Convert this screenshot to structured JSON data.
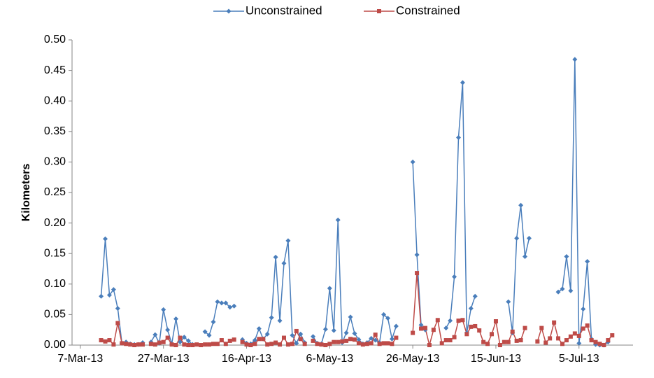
{
  "chart_data": {
    "type": "line",
    "y_label": "Kilometers",
    "x": [
      "2013-03-12",
      "2013-03-13",
      "2013-03-14",
      "2013-03-15",
      "2013-03-16",
      "2013-03-17",
      "2013-03-18",
      "2013-03-19",
      "2013-03-20",
      "2013-03-21",
      "2013-03-22",
      "2013-03-23",
      "2013-03-24",
      "2013-03-25",
      "2013-03-26",
      "2013-03-27",
      "2013-03-28",
      "2013-03-29",
      "2013-03-30",
      "2013-03-31",
      "2013-04-01",
      "2013-04-02",
      "2013-04-03",
      "2013-04-04",
      "2013-04-05",
      "2013-04-06",
      "2013-04-07",
      "2013-04-08",
      "2013-04-09",
      "2013-04-10",
      "2013-04-11",
      "2013-04-12",
      "2013-04-13",
      "2013-04-14",
      "2013-04-15",
      "2013-04-16",
      "2013-04-17",
      "2013-04-18",
      "2013-04-19",
      "2013-04-20",
      "2013-04-21",
      "2013-04-22",
      "2013-04-23",
      "2013-04-24",
      "2013-04-25",
      "2013-04-26",
      "2013-04-27",
      "2013-04-28",
      "2013-04-29",
      "2013-04-30",
      "2013-05-01",
      "2013-05-02",
      "2013-05-03",
      "2013-05-04",
      "2013-05-05",
      "2013-05-06",
      "2013-05-07",
      "2013-05-08",
      "2013-05-09",
      "2013-05-10",
      "2013-05-11",
      "2013-05-12",
      "2013-05-13",
      "2013-05-14",
      "2013-05-15",
      "2013-05-16",
      "2013-05-17",
      "2013-05-18",
      "2013-05-19",
      "2013-05-20",
      "2013-05-21",
      "2013-05-22",
      "2013-05-23",
      "2013-05-24",
      "2013-05-25",
      "2013-05-26",
      "2013-05-27",
      "2013-05-28",
      "2013-05-29",
      "2013-05-30",
      "2013-05-31",
      "2013-06-01",
      "2013-06-02",
      "2013-06-03",
      "2013-06-04",
      "2013-06-05",
      "2013-06-06",
      "2013-06-07",
      "2013-06-08",
      "2013-06-09",
      "2013-06-10",
      "2013-06-11",
      "2013-06-12",
      "2013-06-13",
      "2013-06-14",
      "2013-06-15",
      "2013-06-16",
      "2013-06-17",
      "2013-06-18",
      "2013-06-19",
      "2013-06-20",
      "2013-06-21",
      "2013-06-22",
      "2013-06-23",
      "2013-06-24",
      "2013-06-25",
      "2013-06-26",
      "2013-06-27",
      "2013-06-28",
      "2013-06-29",
      "2013-06-30",
      "2013-07-01",
      "2013-07-02",
      "2013-07-03",
      "2013-07-04",
      "2013-07-05",
      "2013-07-06",
      "2013-07-07",
      "2013-07-08",
      "2013-07-09",
      "2013-07-10",
      "2013-07-11",
      "2013-07-12",
      "2013-07-13"
    ],
    "series": [
      {
        "name": "Unconstrained",
        "color": "#4a7ebb",
        "marker": "diamond",
        "values": [
          0.08,
          0.174,
          0.082,
          0.091,
          0.06,
          0.003,
          0.005,
          0.002,
          0.001,
          0.001,
          0.004,
          null,
          0.005,
          0.017,
          0.003,
          0.058,
          0.025,
          0.002,
          0.043,
          0.005,
          0.013,
          0.007,
          0.001,
          null,
          null,
          0.022,
          0.016,
          0.038,
          0.071,
          0.069,
          0.069,
          0.062,
          0.064,
          null,
          0.009,
          0.003,
          0.002,
          0.008,
          0.027,
          0.01,
          0.018,
          0.045,
          0.144,
          0.04,
          0.134,
          0.171,
          0.016,
          0.003,
          0.018,
          0.004,
          null,
          0.014,
          0.003,
          0.002,
          0.026,
          0.093,
          0.024,
          0.205,
          0.004,
          0.02,
          0.046,
          0.019,
          0.009,
          0.002,
          0.004,
          0.011,
          0.008,
          0.004,
          0.05,
          0.044,
          0.01,
          0.031,
          null,
          null,
          null,
          0.3,
          0.148,
          0.033,
          0.025,
          null,
          null,
          null,
          null,
          0.028,
          0.04,
          0.112,
          0.34,
          0.43,
          0.02,
          0.06,
          0.08,
          null,
          null,
          null,
          null,
          null,
          null,
          null,
          0.071,
          0.02,
          0.175,
          0.229,
          0.145,
          0.175,
          null,
          null,
          null,
          null,
          null,
          null,
          0.087,
          0.092,
          0.145,
          0.089,
          0.468,
          0.003,
          0.059,
          0.137,
          0.01,
          0.001,
          0.0,
          0.0,
          0.005,
          null
        ]
      },
      {
        "name": "Constrained",
        "color": "#be4b48",
        "marker": "square",
        "values": [
          0.008,
          0.006,
          0.008,
          0.001,
          0.036,
          0.003,
          0.002,
          0.001,
          0.0,
          0.001,
          0.001,
          null,
          0.002,
          0.001,
          0.004,
          0.005,
          0.012,
          0.001,
          0.0,
          0.012,
          0.001,
          0.0,
          0.0,
          0.001,
          0.0,
          0.001,
          0.001,
          0.002,
          0.002,
          0.008,
          0.002,
          0.007,
          0.009,
          null,
          0.005,
          0.001,
          0.0,
          0.002,
          0.01,
          0.01,
          0.001,
          0.002,
          0.004,
          0.001,
          0.012,
          0.001,
          0.002,
          0.023,
          0.01,
          0.002,
          null,
          0.007,
          0.002,
          0.001,
          0.0,
          0.002,
          0.005,
          0.005,
          0.006,
          0.007,
          0.01,
          0.009,
          0.003,
          0.001,
          0.002,
          0.003,
          0.017,
          0.002,
          0.003,
          0.003,
          0.002,
          0.012,
          null,
          null,
          null,
          0.02,
          0.118,
          0.027,
          0.028,
          0.0,
          0.025,
          0.041,
          0.003,
          0.008,
          0.008,
          0.013,
          0.04,
          0.041,
          0.018,
          0.03,
          0.031,
          0.024,
          0.005,
          0.002,
          0.018,
          0.039,
          0.0,
          0.005,
          0.005,
          0.022,
          0.007,
          0.008,
          0.028,
          null,
          null,
          0.006,
          0.028,
          0.004,
          0.011,
          0.037,
          0.011,
          0.002,
          0.008,
          0.014,
          0.019,
          0.015,
          0.027,
          0.032,
          0.008,
          0.005,
          0.002,
          0.0,
          0.008,
          0.016
        ]
      }
    ],
    "xlim": [
      "2013-03-05",
      "2013-07-18"
    ],
    "xticks": [
      {
        "value": "2013-03-07",
        "label": "7-Mar-13"
      },
      {
        "value": "2013-03-27",
        "label": "27-Mar-13"
      },
      {
        "value": "2013-04-16",
        "label": "16-Apr-13"
      },
      {
        "value": "2013-05-06",
        "label": "6-May-13"
      },
      {
        "value": "2013-05-26",
        "label": "26-May-13"
      },
      {
        "value": "2013-06-15",
        "label": "15-Jun-13"
      },
      {
        "value": "2013-07-05",
        "label": "5-Jul-13"
      }
    ],
    "ylim": [
      0,
      0.5
    ],
    "yticks": [
      {
        "value": 0,
        "label": "0.00"
      },
      {
        "value": 0.05,
        "label": "0.05"
      },
      {
        "value": 0.1,
        "label": "0.10"
      },
      {
        "value": 0.15,
        "label": "0.15"
      },
      {
        "value": 0.2,
        "label": "0.20"
      },
      {
        "value": 0.25,
        "label": "0.25"
      },
      {
        "value": 0.3,
        "label": "0.30"
      },
      {
        "value": 0.35,
        "label": "0.35"
      },
      {
        "value": 0.4,
        "label": "0.40"
      },
      {
        "value": 0.45,
        "label": "0.45"
      },
      {
        "value": 0.5,
        "label": "0.50"
      }
    ],
    "grid": false,
    "legend": "top"
  }
}
